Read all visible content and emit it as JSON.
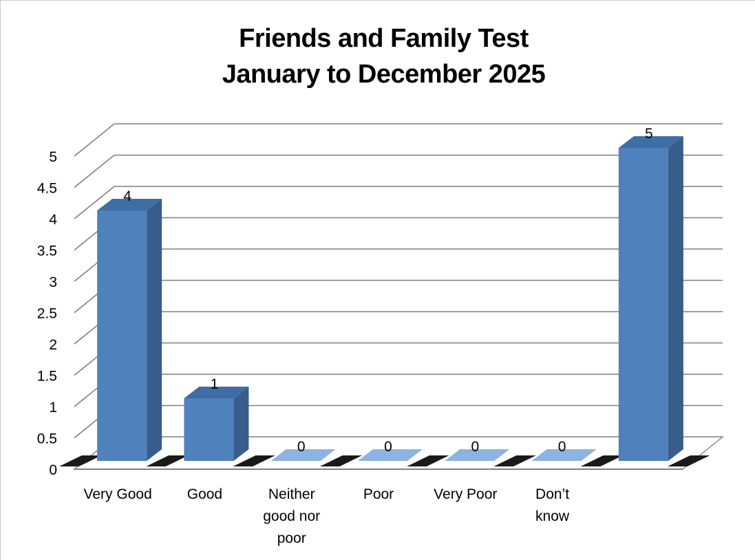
{
  "chart_data": {
    "type": "bar",
    "title": [
      "Friends and Family Test",
      "January to December 2025"
    ],
    "categories": [
      "Very Good",
      "Good",
      "Neither good nor poor",
      "Poor",
      "Very Poor",
      "Don’t know",
      ""
    ],
    "category_label_lines": [
      [
        "Very Good"
      ],
      [
        "Good"
      ],
      [
        "Neither",
        "good nor",
        "poor"
      ],
      [
        "Poor"
      ],
      [
        "Very Poor"
      ],
      [
        "Don’t",
        "know"
      ],
      []
    ],
    "values": [
      4,
      1,
      0,
      0,
      0,
      0,
      5
    ],
    "data_labels": [
      "4",
      "1",
      "0",
      "0",
      "0",
      "0",
      "5"
    ],
    "ylim": [
      0,
      5
    ],
    "y_ticks": [
      "0",
      "0.5",
      "1",
      "1.5",
      "2",
      "2.5",
      "3",
      "3.5",
      "4",
      "4.5",
      "5"
    ],
    "xlabel": "",
    "ylabel": "",
    "grid": true,
    "style": "3d-column",
    "colors": {
      "bar_front": "#4f81bd",
      "bar_side": "#385d8a",
      "bar_top": "#3f6da6",
      "zero_bar": "#8db3e2",
      "floor_dark": "#1a1a1a",
      "grid": "#7f7f7f"
    }
  }
}
